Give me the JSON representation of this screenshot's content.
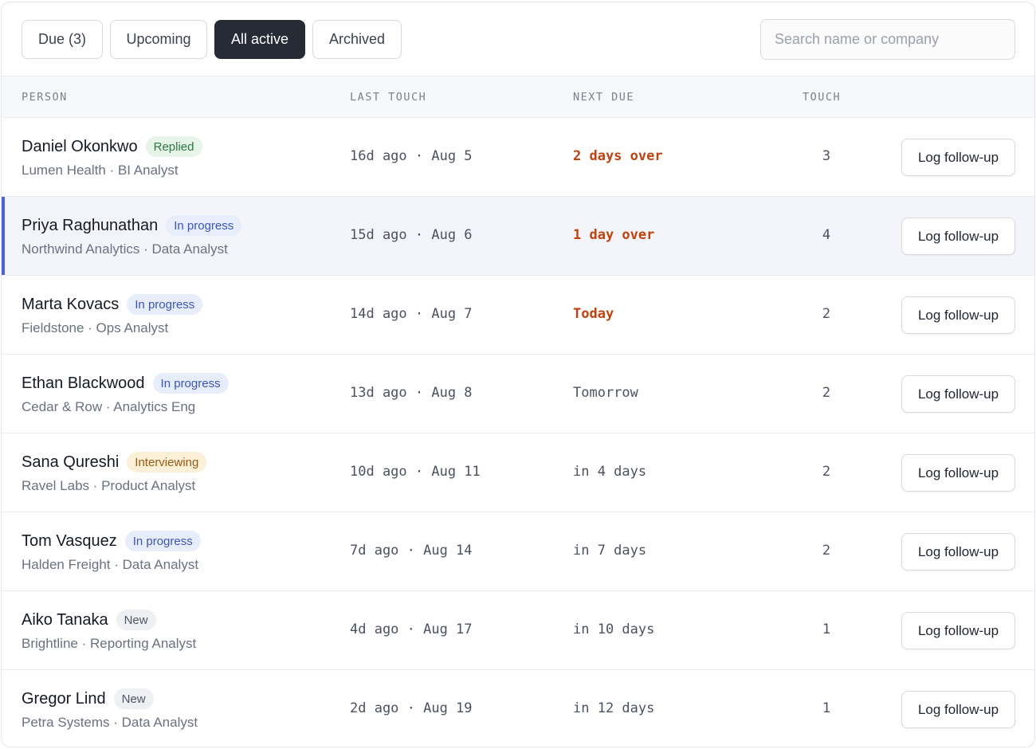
{
  "filters": {
    "tabs": [
      {
        "label": "Due (3)",
        "active": false
      },
      {
        "label": "Upcoming",
        "active": false
      },
      {
        "label": "All active",
        "active": true
      },
      {
        "label": "Archived",
        "active": false
      }
    ],
    "search_placeholder": "Search name or company"
  },
  "table": {
    "columns": [
      "PERSON",
      "LAST TOUCH",
      "NEXT DUE",
      "TOUCH"
    ],
    "action_label": "Log follow-up",
    "rows": [
      {
        "name": "Daniel Okonkwo",
        "status": "Replied",
        "company": "Lumen Health · BI Analyst",
        "last_touch": "16d ago · Aug 5",
        "next_due": "2 days over",
        "touch": "3"
      },
      {
        "name": "Priya Raghunathan",
        "status": "In progress",
        "company": "Northwind Analytics · Data Analyst",
        "last_touch": "15d ago · Aug 6",
        "next_due": "1 day over",
        "touch": "4"
      },
      {
        "name": "Marta Kovacs",
        "status": "In progress",
        "company": "Fieldstone · Ops Analyst",
        "last_touch": "14d ago · Aug 7",
        "next_due": "Today",
        "touch": "2"
      },
      {
        "name": "Ethan Blackwood",
        "status": "In progress",
        "company": "Cedar & Row · Analytics Eng",
        "last_touch": "13d ago · Aug 8",
        "next_due": "Tomorrow",
        "touch": "2"
      },
      {
        "name": "Sana Qureshi",
        "status": "Interviewing",
        "company": "Ravel Labs · Product Analyst",
        "last_touch": "10d ago · Aug 11",
        "next_due": "in 4 days",
        "touch": "2"
      },
      {
        "name": "Tom Vasquez",
        "status": "In progress",
        "company": "Halden Freight · Data Analyst",
        "last_touch": "7d ago · Aug 14",
        "next_due": "in 7 days",
        "touch": "2"
      },
      {
        "name": "Aiko Tanaka",
        "status": "New",
        "company": "Brightline · Reporting Analyst",
        "last_touch": "4d ago · Aug 17",
        "next_due": "in 10 days",
        "touch": "1"
      },
      {
        "name": "Gregor Lind",
        "status": "New",
        "company": "Petra Systems · Data Analyst",
        "last_touch": "2d ago · Aug 19",
        "next_due": "in 12 days",
        "touch": "1"
      }
    ]
  },
  "colors": {
    "overdue": "#c2410c",
    "accent": "#4a63d8",
    "active_tab": "#262b36"
  }
}
